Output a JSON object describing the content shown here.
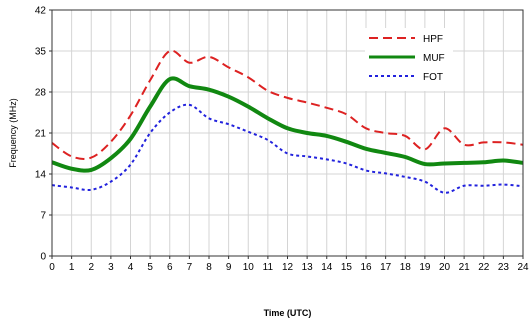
{
  "chart_data": {
    "type": "line",
    "title": "",
    "xlabel": "Time (UTC)",
    "ylabel": "Frequency (MHz)",
    "xlim": [
      0,
      24
    ],
    "ylim": [
      0,
      42
    ],
    "x_ticks": [
      0,
      1,
      2,
      3,
      4,
      5,
      6,
      7,
      8,
      9,
      10,
      11,
      12,
      13,
      14,
      15,
      16,
      17,
      18,
      19,
      20,
      21,
      22,
      23,
      24
    ],
    "y_ticks": [
      0,
      7,
      14,
      21,
      28,
      35,
      42
    ],
    "grid": true,
    "legend_position": "top-right",
    "x": [
      0,
      1,
      2,
      3,
      4,
      5,
      6,
      7,
      8,
      9,
      10,
      11,
      12,
      13,
      14,
      15,
      16,
      17,
      18,
      19,
      20,
      21,
      22,
      23,
      24
    ],
    "series": [
      {
        "name": "HPF",
        "color": "#dd2222",
        "dash": "dashed",
        "values": [
          19.3,
          17.0,
          16.8,
          19.5,
          24.0,
          30.0,
          35.0,
          33.0,
          34.0,
          32.2,
          30.5,
          28.2,
          27.0,
          26.2,
          25.3,
          24.2,
          21.8,
          21.0,
          20.5,
          18.2,
          21.8,
          19.0,
          19.4,
          19.4,
          19.0
        ]
      },
      {
        "name": "MUF",
        "color": "#118811",
        "dash": "solid",
        "values": [
          16.0,
          14.9,
          14.7,
          16.7,
          20.0,
          25.5,
          30.2,
          29.0,
          28.4,
          27.2,
          25.5,
          23.5,
          21.8,
          21.0,
          20.5,
          19.5,
          18.3,
          17.6,
          16.9,
          15.7,
          15.8,
          15.9,
          16.0,
          16.3,
          15.9
        ]
      },
      {
        "name": "FOT",
        "color": "#2222dd",
        "dash": "dotted",
        "values": [
          12.1,
          11.7,
          11.3,
          12.7,
          15.6,
          21.0,
          24.5,
          25.8,
          23.5,
          22.5,
          21.2,
          19.8,
          17.5,
          17.0,
          16.5,
          15.8,
          14.6,
          14.1,
          13.5,
          12.7,
          10.8,
          12.0,
          12.0,
          12.2,
          11.9
        ]
      }
    ]
  }
}
